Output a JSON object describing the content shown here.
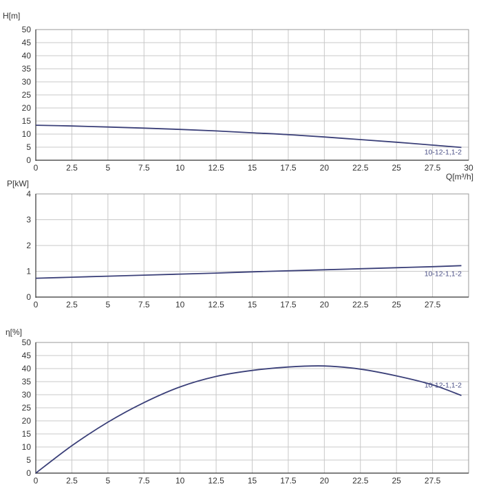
{
  "chart_data": [
    {
      "type": "line",
      "title": "",
      "ylabel": "H[m]",
      "xlabel": "Q[m³/h]",
      "xlim": [
        0,
        30
      ],
      "ylim": [
        0,
        50
      ],
      "x_ticks": [
        "0",
        "2.5",
        "5",
        "7.5",
        "10",
        "12.5",
        "15",
        "17.5",
        "20",
        "22.5",
        "25",
        "27.5",
        "30"
      ],
      "y_ticks": [
        "0",
        "5",
        "10",
        "15",
        "20",
        "25",
        "30",
        "35",
        "40",
        "45",
        "50"
      ],
      "grid": true,
      "series": [
        {
          "name": "10-12-1,1-2",
          "color": "#3a3f78",
          "x": [
            0,
            2.5,
            5,
            7.5,
            10,
            12.5,
            15,
            17.5,
            20,
            22.5,
            25,
            27.5,
            29.5
          ],
          "y": [
            13.4,
            13.1,
            12.7,
            12.3,
            11.8,
            11.2,
            10.5,
            9.8,
            8.9,
            7.9,
            6.9,
            5.8,
            4.9
          ]
        }
      ]
    },
    {
      "type": "line",
      "title": "",
      "ylabel": "P[kW]",
      "xlabel": "",
      "xlim": [
        0,
        30
      ],
      "ylim": [
        0,
        4
      ],
      "x_ticks": [
        "0",
        "2.5",
        "5",
        "7.5",
        "10",
        "12.5",
        "15",
        "17.5",
        "20",
        "22.5",
        "25",
        "27.5"
      ],
      "y_ticks": [
        "0",
        "1",
        "2",
        "3",
        "4"
      ],
      "grid": true,
      "series": [
        {
          "name": "10-12-1,1-2",
          "color": "#3a3f78",
          "x": [
            0,
            2.5,
            5,
            7.5,
            10,
            12.5,
            15,
            17.5,
            20,
            22.5,
            25,
            27.5,
            29.5
          ],
          "y": [
            0.73,
            0.77,
            0.81,
            0.85,
            0.89,
            0.93,
            0.98,
            1.02,
            1.06,
            1.1,
            1.14,
            1.18,
            1.22
          ]
        }
      ]
    },
    {
      "type": "line",
      "title": "",
      "ylabel": "η[%]",
      "xlabel": "",
      "xlim": [
        0,
        30
      ],
      "ylim": [
        0,
        50
      ],
      "x_ticks": [
        "0",
        "2.5",
        "5",
        "7.5",
        "10",
        "12.5",
        "15",
        "17.5",
        "20",
        "22.5",
        "25",
        "27.5"
      ],
      "y_ticks": [
        "0",
        "5",
        "10",
        "15",
        "20",
        "25",
        "30",
        "35",
        "40",
        "45",
        "50"
      ],
      "grid": true,
      "series": [
        {
          "name": "10-12-1,1-2",
          "color": "#3a3f78",
          "x": [
            0,
            2.5,
            5,
            7.5,
            10,
            12.5,
            15,
            17.5,
            20,
            22.5,
            25,
            27.5,
            29.5
          ],
          "y": [
            0,
            10.5,
            19.5,
            27,
            33,
            37,
            39.3,
            40.6,
            41,
            39.8,
            37.2,
            33.8,
            29.7
          ]
        }
      ]
    }
  ]
}
